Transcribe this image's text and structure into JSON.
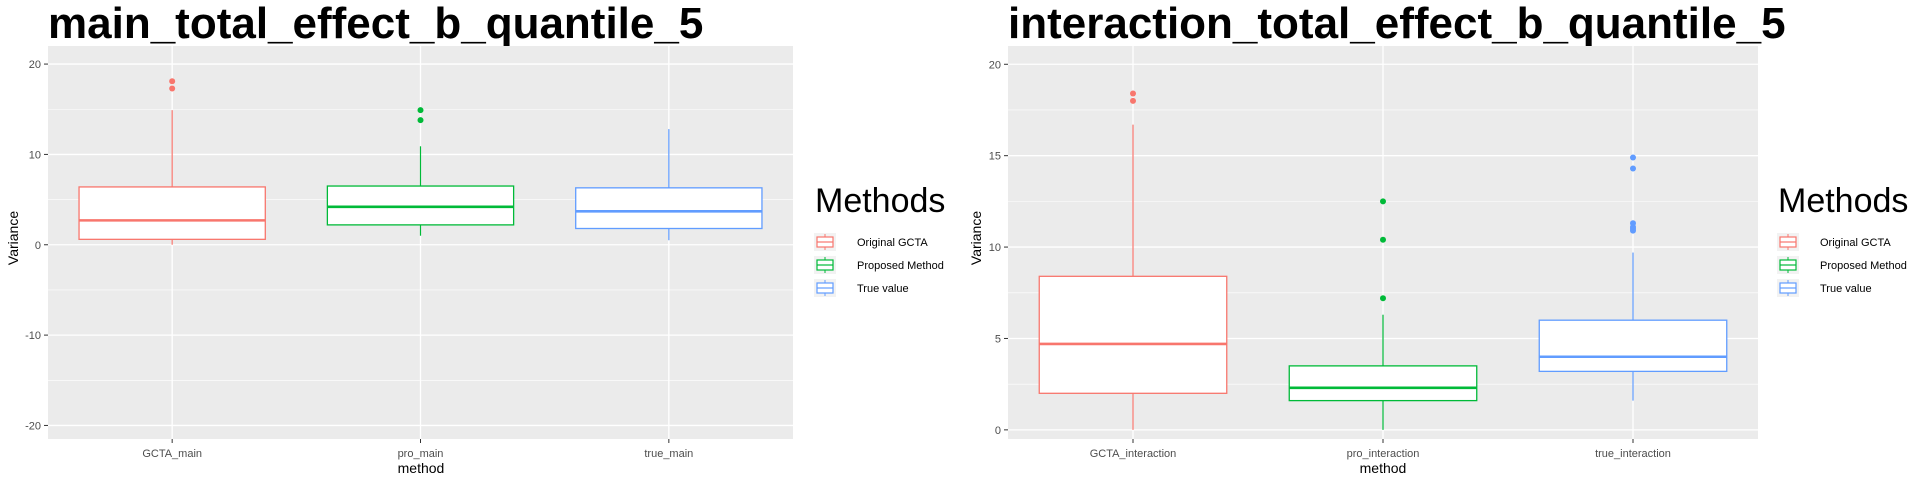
{
  "legend": {
    "title": "Methods",
    "entries": [
      {
        "label": "Original GCTA",
        "color": "#f8766d"
      },
      {
        "label": "Proposed Method",
        "color": "#00ba38"
      },
      {
        "label": "True value",
        "color": "#619cff"
      }
    ]
  },
  "chart_data": [
    {
      "type": "box",
      "title": "main_total_effect_b_quantile_5",
      "xlabel": "method",
      "ylabel": "Variance",
      "ylim": [
        -21.5,
        22
      ],
      "yticks": [
        -20,
        -10,
        0,
        10,
        20
      ],
      "yticklabels": [
        "-20",
        "-10",
        "0",
        "10",
        "20"
      ],
      "grid": true,
      "legend_position": "right",
      "categories": [
        "GCTA_main",
        "pro_main",
        "true_main"
      ],
      "series": [
        {
          "name": "Original GCTA",
          "category": "GCTA_main",
          "color": "#f8766d",
          "whisker_low": 0,
          "q1": 0.6,
          "median": 2.7,
          "q3": 6.4,
          "whisker_high": 14.9,
          "outliers": [
            17.3,
            18.1
          ]
        },
        {
          "name": "Proposed Method",
          "category": "pro_main",
          "color": "#00ba38",
          "whisker_low": 1.0,
          "q1": 2.2,
          "median": 4.2,
          "q3": 6.5,
          "whisker_high": 10.9,
          "outliers": [
            13.8,
            14.9
          ]
        },
        {
          "name": "True value",
          "category": "true_main",
          "color": "#619cff",
          "whisker_low": 0.5,
          "q1": 1.8,
          "median": 3.7,
          "q3": 6.3,
          "whisker_high": 12.8,
          "outliers": []
        }
      ]
    },
    {
      "type": "box",
      "title": "interaction_total_effect_b_quantile_5",
      "xlabel": "method",
      "ylabel": "Variance",
      "ylim": [
        -0.5,
        21
      ],
      "yticks": [
        0,
        5,
        10,
        15,
        20
      ],
      "yticklabels": [
        "0",
        "5",
        "10",
        "15",
        "20"
      ],
      "grid": true,
      "legend_position": "right",
      "categories": [
        "GCTA_interaction",
        "pro_interaction",
        "true_interaction"
      ],
      "series": [
        {
          "name": "Original GCTA",
          "category": "GCTA_interaction",
          "color": "#f8766d",
          "whisker_low": 0,
          "q1": 2.0,
          "median": 4.7,
          "q3": 8.4,
          "whisker_high": 16.7,
          "outliers": [
            18.0,
            18.4
          ]
        },
        {
          "name": "Proposed Method",
          "category": "pro_interaction",
          "color": "#00ba38",
          "whisker_low": 0,
          "q1": 1.6,
          "median": 2.3,
          "q3": 3.5,
          "whisker_high": 6.3,
          "outliers": [
            7.2,
            10.4,
            12.5
          ]
        },
        {
          "name": "True value",
          "category": "true_interaction",
          "color": "#619cff",
          "whisker_low": 1.6,
          "q1": 3.2,
          "median": 4.0,
          "q3": 6.0,
          "whisker_high": 9.7,
          "outliers": [
            10.9,
            11.0,
            11.1,
            11.3,
            14.3,
            14.9
          ]
        }
      ]
    }
  ]
}
